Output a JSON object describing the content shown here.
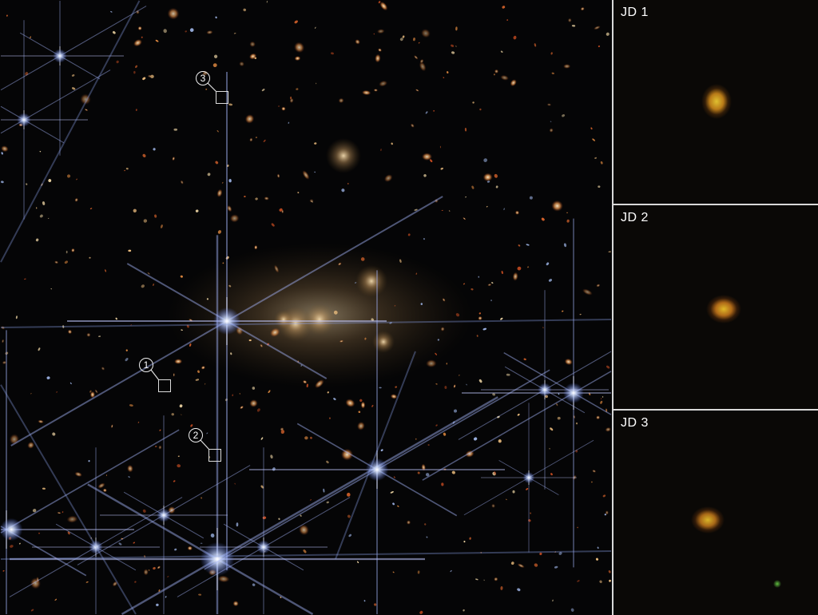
{
  "main_image": {
    "markers": [
      {
        "label": "1"
      },
      {
        "label": "2"
      },
      {
        "label": "3"
      }
    ]
  },
  "insets": [
    {
      "label": "JD 1"
    },
    {
      "label": "JD 2"
    },
    {
      "label": "JD 3"
    }
  ],
  "colors": {
    "divider": "#d8d8d8",
    "background": "#050506",
    "candidate": "#d7b020"
  }
}
